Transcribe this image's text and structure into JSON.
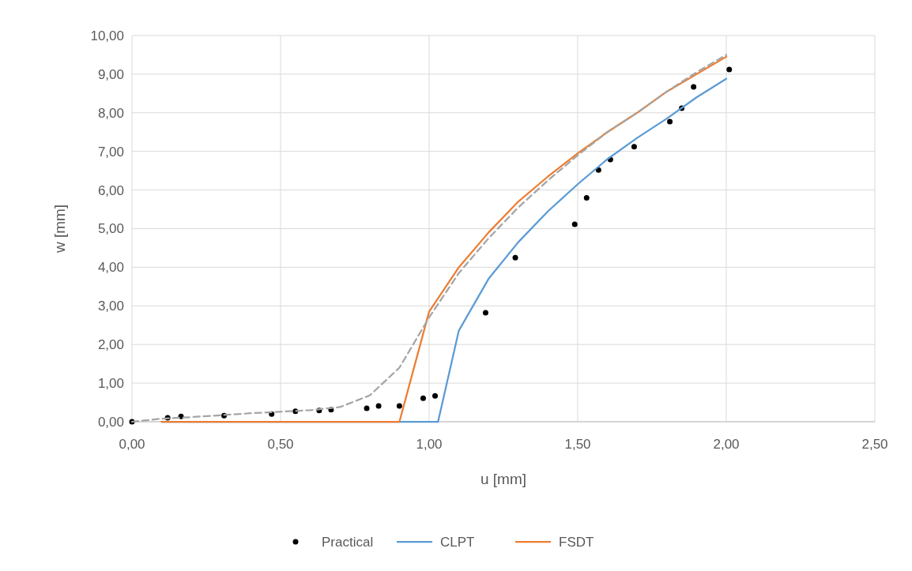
{
  "chart_data": {
    "type": "line",
    "xlabel": "u [mm]",
    "ylabel": "w [mm]",
    "xlim": [
      0,
      2.5
    ],
    "ylim": [
      0,
      10
    ],
    "xticks": [
      {
        "value": 0,
        "label": "0,00"
      },
      {
        "value": 0.5,
        "label": "0,50"
      },
      {
        "value": 1,
        "label": "1,00"
      },
      {
        "value": 1.5,
        "label": "1,50"
      },
      {
        "value": 2,
        "label": "2,00"
      },
      {
        "value": 2.5,
        "label": "2,50"
      }
    ],
    "yticks": [
      {
        "value": 0,
        "label": "0,00"
      },
      {
        "value": 1,
        "label": "1,00"
      },
      {
        "value": 2,
        "label": "2,00"
      },
      {
        "value": 3,
        "label": "3,00"
      },
      {
        "value": 4,
        "label": "4,00"
      },
      {
        "value": 5,
        "label": "5,00"
      },
      {
        "value": 6,
        "label": "6,00"
      },
      {
        "value": 7,
        "label": "7,00"
      },
      {
        "value": 8,
        "label": "8,00"
      },
      {
        "value": 9,
        "label": "9,00"
      },
      {
        "value": 10,
        "label": "10,00"
      }
    ],
    "grid": true,
    "legend": "bottom",
    "series": [
      {
        "name": "Practical",
        "type": "scatter",
        "marker": "circle",
        "color": "#000000",
        "x": [
          0,
          0.12,
          0.165,
          0.31,
          0.47,
          0.55,
          0.63,
          0.67,
          0.79,
          0.83,
          0.9,
          0.98,
          1.02,
          1.19,
          1.29,
          1.49,
          1.53,
          1.57,
          1.61,
          1.69,
          1.81,
          1.85,
          1.89,
          2.01
        ],
        "values": [
          0,
          0.1,
          0.14,
          0.16,
          0.2,
          0.27,
          0.29,
          0.31,
          0.35,
          0.41,
          0.41,
          0.61,
          0.67,
          2.82,
          4.25,
          5.11,
          5.8,
          6.52,
          6.79,
          7.12,
          7.77,
          8.12,
          8.67,
          9.12
        ]
      },
      {
        "name": "CLPT",
        "line_style": "solid",
        "color": "#5b9bd5",
        "x": [
          0.1,
          1.03,
          1.1,
          1.2,
          1.3,
          1.4,
          1.5,
          1.6,
          1.7,
          1.8,
          1.9,
          2.0
        ],
        "values": [
          0,
          0,
          2.36,
          3.7,
          4.65,
          5.45,
          6.15,
          6.8,
          7.35,
          7.85,
          8.4,
          8.88
        ]
      },
      {
        "name": "FSDT",
        "line_style": "solid",
        "color": "#ed7d31",
        "x": [
          0.1,
          0.9,
          1.0,
          1.1,
          1.2,
          1.3,
          1.4,
          1.5,
          1.6,
          1.7,
          1.8,
          1.9,
          2.0
        ],
        "values": [
          0,
          0,
          2.85,
          4.0,
          4.9,
          5.7,
          6.35,
          6.95,
          7.5,
          8.0,
          8.55,
          9.0,
          9.45
        ]
      },
      {
        "line_style": "dashed",
        "color": "#a5a5a5",
        "x": [
          0,
          0.1,
          0.2,
          0.3,
          0.4,
          0.5,
          0.6,
          0.7,
          0.8,
          0.9,
          1.0,
          1.1,
          1.2,
          1.3,
          1.4,
          1.5,
          1.6,
          1.7,
          1.8,
          1.9,
          2.0
        ],
        "values": [
          0,
          0.08,
          0.12,
          0.17,
          0.22,
          0.26,
          0.3,
          0.38,
          0.68,
          1.4,
          2.7,
          3.85,
          4.75,
          5.55,
          6.25,
          6.9,
          7.5,
          8.0,
          8.55,
          9.05,
          9.5
        ]
      }
    ]
  }
}
